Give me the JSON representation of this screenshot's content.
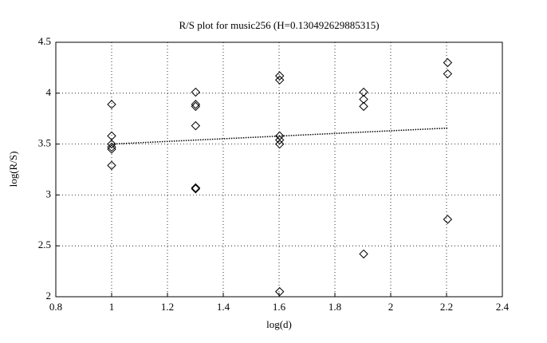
{
  "chart_data": {
    "type": "scatter",
    "title": "R/S plot for music256 (H=0.130492629885315)",
    "x_label": "log(d)",
    "y_label": "log(R/S)",
    "series": [
      {
        "color": "#000000",
        "marker": "diamond",
        "x": [
          1,
          1,
          1,
          1,
          1,
          1,
          1.301,
          1.301,
          1.301,
          1.301,
          1.301,
          1.301,
          1.602,
          1.602,
          1.602,
          1.602,
          1.602,
          1.602,
          1.903,
          1.903,
          1.903,
          1.903,
          2.204,
          2.204,
          2.204
        ],
        "values": [
          3.89,
          3.58,
          3.5,
          3.47,
          3.45,
          3.29,
          4.01,
          3.89,
          3.87,
          3.68,
          3.07,
          3.06,
          4.17,
          4.13,
          3.58,
          3.54,
          3.5,
          2.05,
          4.01,
          3.94,
          3.87,
          2.42,
          4.3,
          4.19,
          2.76
        ]
      },
      {
        "color": "#000000",
        "line": "dotted",
        "x": [
          1,
          2.204
        ],
        "values": [
          3.5,
          3.657
        ]
      }
    ],
    "xlim": [
      0.8,
      2.4
    ],
    "xticks": [
      0.8,
      1,
      1.2,
      1.4,
      1.6,
      1.8,
      2,
      2.2,
      2.4
    ],
    "ylim": [
      2,
      4.5
    ],
    "yticks": [
      2,
      2.5,
      3,
      3.5,
      4,
      4.5
    ],
    "grid": true
  }
}
